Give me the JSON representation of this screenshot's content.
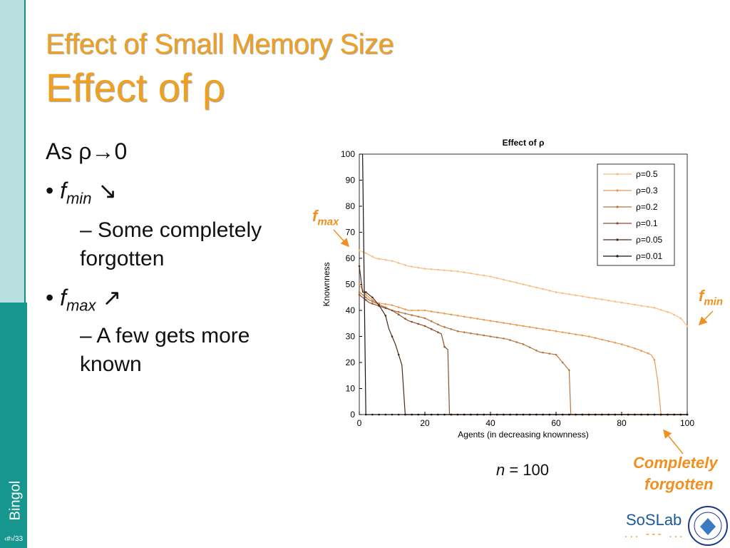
{
  "sidebar": {
    "label": "Bingol",
    "slide_number": "‹#›/33"
  },
  "title": {
    "line1": "Effect of Small Memory Size",
    "line2": "Effect of ρ"
  },
  "bullets": {
    "intro": "As ρ→0",
    "fmin": {
      "f": "f",
      "sub": "min",
      "arrow": " ↘"
    },
    "fmin_detail_1": "– Some completely",
    "fmin_detail_2": "forgotten",
    "fmax": {
      "f": "f",
      "sub": "max",
      "arrow": " ↗"
    },
    "fmax_detail_1": "– A few gets more",
    "fmax_detail_2": "known"
  },
  "annotations": {
    "fmax": {
      "f": "f",
      "sub": "max"
    },
    "fmin": {
      "f": "f",
      "sub": "min"
    },
    "completely": "Completely",
    "forgotten": "forgotten",
    "n_label_n": "n",
    "n_label_value": " = 100"
  },
  "logo": {
    "text": "SoSLab",
    "dots": "... --- ..."
  },
  "colors": {
    "accent": "#f0a020",
    "sidebar_dark": "#17958f",
    "sidebar_light": "#b9e0e0"
  },
  "chart_data": {
    "type": "line",
    "title": "Effect of ρ",
    "xlabel": "Agents (in decreasing knownness)",
    "ylabel": "Knownness",
    "xlim": [
      0,
      100
    ],
    "ylim": [
      0,
      100
    ],
    "xticks": [
      0,
      20,
      40,
      60,
      80,
      100
    ],
    "yticks": [
      0,
      10,
      20,
      30,
      40,
      50,
      60,
      70,
      80,
      90,
      100
    ],
    "legend_position": "top-right",
    "series": [
      {
        "name": "ρ=0.5",
        "color": "#f5c080",
        "points": [
          [
            0,
            63
          ],
          [
            2,
            62
          ],
          [
            5,
            60
          ],
          [
            10,
            59
          ],
          [
            15,
            57
          ],
          [
            20,
            56
          ],
          [
            30,
            55
          ],
          [
            40,
            53
          ],
          [
            50,
            50
          ],
          [
            60,
            47
          ],
          [
            70,
            45
          ],
          [
            80,
            43
          ],
          [
            90,
            41
          ],
          [
            95,
            39
          ],
          [
            98,
            37
          ],
          [
            100,
            34
          ]
        ]
      },
      {
        "name": "ρ=0.3",
        "color": "#e89a50",
        "points": [
          [
            0,
            50
          ],
          [
            2,
            46
          ],
          [
            5,
            43
          ],
          [
            10,
            42
          ],
          [
            15,
            40
          ],
          [
            20,
            40
          ],
          [
            30,
            38
          ],
          [
            40,
            36
          ],
          [
            50,
            34
          ],
          [
            60,
            32
          ],
          [
            70,
            30
          ],
          [
            80,
            27
          ],
          [
            85,
            25
          ],
          [
            89,
            23
          ],
          [
            90,
            21
          ],
          [
            91,
            13
          ],
          [
            92,
            0
          ],
          [
            100,
            0
          ]
        ]
      },
      {
        "name": "ρ=0.2",
        "color": "#b8763e",
        "points": [
          [
            0,
            47
          ],
          [
            3,
            44
          ],
          [
            10,
            40
          ],
          [
            20,
            37
          ],
          [
            25,
            34
          ],
          [
            30,
            32
          ],
          [
            40,
            30
          ],
          [
            45,
            29
          ],
          [
            50,
            27
          ],
          [
            55,
            24
          ],
          [
            60,
            23
          ],
          [
            62,
            20
          ],
          [
            64,
            17
          ],
          [
            64.5,
            0
          ],
          [
            100,
            0
          ]
        ]
      },
      {
        "name": "ρ=0.1",
        "color": "#8a5030",
        "points": [
          [
            0,
            46
          ],
          [
            3,
            43
          ],
          [
            10,
            40
          ],
          [
            15,
            36
          ],
          [
            20,
            34
          ],
          [
            25,
            31
          ],
          [
            26,
            26
          ],
          [
            27,
            25
          ],
          [
            27.5,
            0
          ],
          [
            100,
            0
          ]
        ]
      },
      {
        "name": "ρ=0.05",
        "color": "#4a2a1a",
        "points": [
          [
            0,
            57
          ],
          [
            1,
            47
          ],
          [
            2,
            47
          ],
          [
            4,
            45
          ],
          [
            6,
            42
          ],
          [
            8,
            38
          ],
          [
            9,
            33
          ],
          [
            10,
            30
          ],
          [
            11,
            27
          ],
          [
            12,
            23
          ],
          [
            13,
            19
          ],
          [
            14,
            0
          ],
          [
            100,
            0
          ]
        ]
      },
      {
        "name": "ρ=0.01",
        "color": "#1a1010",
        "points": [
          [
            1,
            100
          ],
          [
            2,
            0
          ],
          [
            100,
            0
          ]
        ]
      }
    ]
  }
}
